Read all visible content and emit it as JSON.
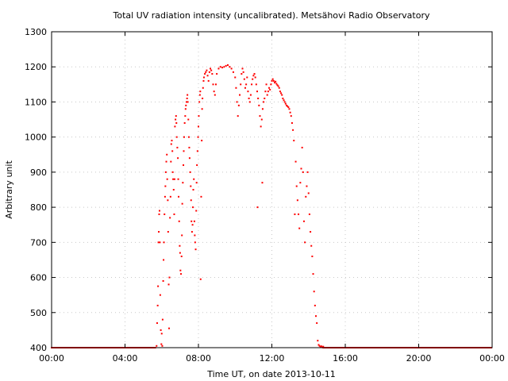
{
  "chart_data": {
    "type": "scatter",
    "title": "Total UV radiation intensity (uncalibrated). Metsähovi Radio Observatory",
    "xlabel": "Time UT, on date 2013-10-11",
    "ylabel": "Arbitrary unit",
    "x_unit": "hours UT",
    "xlim": [
      0,
      24
    ],
    "ylim": [
      400,
      1300
    ],
    "x_ticks": [
      0,
      4,
      8,
      12,
      16,
      20,
      24
    ],
    "x_tick_labels": [
      "00:00",
      "04:00",
      "08:00",
      "12:00",
      "16:00",
      "20:00",
      "00:00"
    ],
    "y_ticks": [
      400,
      500,
      600,
      700,
      800,
      900,
      1000,
      1100,
      1200,
      1300
    ],
    "y_tick_labels": [
      "400",
      "500",
      "600",
      "700",
      "800",
      "900",
      "1000",
      "1100",
      "1200",
      "1300"
    ],
    "grid": true,
    "marker_color": "#ff0000",
    "baseline": {
      "value": 400,
      "x_ranges": [
        [
          0,
          5.65
        ],
        [
          14.8,
          24
        ]
      ]
    },
    "points": [
      [
        5.72,
        405
      ],
      [
        5.75,
        470
      ],
      [
        5.78,
        520
      ],
      [
        5.8,
        575
      ],
      [
        5.82,
        700
      ],
      [
        5.84,
        730
      ],
      [
        5.86,
        780
      ],
      [
        5.88,
        790
      ],
      [
        5.9,
        700
      ],
      [
        5.92,
        550
      ],
      [
        5.95,
        450
      ],
      [
        5.98,
        410
      ],
      [
        6.0,
        440
      ],
      [
        6.03,
        405
      ],
      [
        6.05,
        480
      ],
      [
        6.08,
        590
      ],
      [
        6.1,
        650
      ],
      [
        6.12,
        700
      ],
      [
        6.15,
        780
      ],
      [
        6.18,
        830
      ],
      [
        6.2,
        860
      ],
      [
        6.22,
        900
      ],
      [
        6.25,
        930
      ],
      [
        6.28,
        950
      ],
      [
        6.3,
        880
      ],
      [
        6.33,
        820
      ],
      [
        6.35,
        730
      ],
      [
        6.38,
        580
      ],
      [
        6.4,
        455
      ],
      [
        6.42,
        600
      ],
      [
        6.45,
        770
      ],
      [
        6.48,
        830
      ],
      [
        6.5,
        930
      ],
      [
        6.52,
        980
      ],
      [
        6.55,
        990
      ],
      [
        6.58,
        960
      ],
      [
        6.6,
        900
      ],
      [
        6.62,
        880
      ],
      [
        6.65,
        850
      ],
      [
        6.68,
        780
      ],
      [
        6.7,
        880
      ],
      [
        6.72,
        1030
      ],
      [
        6.75,
        1050
      ],
      [
        6.78,
        1060
      ],
      [
        6.8,
        1040
      ],
      [
        6.82,
        1000
      ],
      [
        6.85,
        970
      ],
      [
        6.88,
        940
      ],
      [
        6.9,
        880
      ],
      [
        6.92,
        830
      ],
      [
        6.95,
        760
      ],
      [
        6.98,
        690
      ],
      [
        7.0,
        670
      ],
      [
        7.02,
        620
      ],
      [
        7.05,
        610
      ],
      [
        7.08,
        660
      ],
      [
        7.1,
        720
      ],
      [
        7.12,
        810
      ],
      [
        7.15,
        870
      ],
      [
        7.18,
        920
      ],
      [
        7.2,
        960
      ],
      [
        7.22,
        1000
      ],
      [
        7.25,
        1040
      ],
      [
        7.28,
        1060
      ],
      [
        7.3,
        1080
      ],
      [
        7.32,
        1090
      ],
      [
        7.35,
        1100
      ],
      [
        7.38,
        1110
      ],
      [
        7.4,
        1120
      ],
      [
        7.42,
        1100
      ],
      [
        7.45,
        1050
      ],
      [
        7.48,
        1000
      ],
      [
        7.5,
        970
      ],
      [
        7.52,
        940
      ],
      [
        7.55,
        900
      ],
      [
        7.58,
        860
      ],
      [
        7.6,
        820
      ],
      [
        7.62,
        760
      ],
      [
        7.65,
        730
      ],
      [
        7.68,
        750
      ],
      [
        7.7,
        800
      ],
      [
        7.72,
        850
      ],
      [
        7.75,
        880
      ],
      [
        7.78,
        760
      ],
      [
        7.8,
        720
      ],
      [
        7.82,
        700
      ],
      [
        7.85,
        680
      ],
      [
        7.88,
        790
      ],
      [
        7.9,
        870
      ],
      [
        7.92,
        920
      ],
      [
        7.95,
        960
      ],
      [
        7.98,
        1000
      ],
      [
        8.0,
        1030
      ],
      [
        8.02,
        1060
      ],
      [
        8.05,
        1100
      ],
      [
        8.08,
        1120
      ],
      [
        8.1,
        1130
      ],
      [
        8.12,
        595
      ],
      [
        8.15,
        830
      ],
      [
        8.18,
        990
      ],
      [
        8.2,
        1080
      ],
      [
        8.22,
        1110
      ],
      [
        8.25,
        1140
      ],
      [
        8.28,
        1160
      ],
      [
        8.3,
        1170
      ],
      [
        8.35,
        1180
      ],
      [
        8.4,
        1185
      ],
      [
        8.45,
        1190
      ],
      [
        8.5,
        1175
      ],
      [
        8.55,
        1160
      ],
      [
        8.6,
        1185
      ],
      [
        8.65,
        1195
      ],
      [
        8.7,
        1190
      ],
      [
        8.75,
        1180
      ],
      [
        8.8,
        1150
      ],
      [
        8.85,
        1130
      ],
      [
        8.9,
        1120
      ],
      [
        8.95,
        1150
      ],
      [
        9.0,
        1180
      ],
      [
        9.1,
        1195
      ],
      [
        9.2,
        1200
      ],
      [
        9.3,
        1198
      ],
      [
        9.4,
        1200
      ],
      [
        9.5,
        1203
      ],
      [
        9.6,
        1205
      ],
      [
        9.7,
        1200
      ],
      [
        9.8,
        1195
      ],
      [
        9.9,
        1185
      ],
      [
        10.0,
        1170
      ],
      [
        10.05,
        1140
      ],
      [
        10.1,
        1100
      ],
      [
        10.15,
        1060
      ],
      [
        10.2,
        1090
      ],
      [
        10.25,
        1120
      ],
      [
        10.3,
        1150
      ],
      [
        10.35,
        1180
      ],
      [
        10.4,
        1195
      ],
      [
        10.45,
        1185
      ],
      [
        10.5,
        1165
      ],
      [
        10.55,
        1140
      ],
      [
        10.6,
        1150
      ],
      [
        10.65,
        1170
      ],
      [
        10.7,
        1130
      ],
      [
        10.75,
        1110
      ],
      [
        10.8,
        1100
      ],
      [
        10.85,
        1120
      ],
      [
        10.9,
        1150
      ],
      [
        10.95,
        1165
      ],
      [
        11.0,
        1175
      ],
      [
        11.05,
        1180
      ],
      [
        11.1,
        1170
      ],
      [
        11.15,
        1150
      ],
      [
        11.2,
        1130
      ],
      [
        11.22,
        800
      ],
      [
        11.25,
        1110
      ],
      [
        11.3,
        1090
      ],
      [
        11.35,
        1060
      ],
      [
        11.4,
        1030
      ],
      [
        11.45,
        1050
      ],
      [
        11.48,
        870
      ],
      [
        11.5,
        1080
      ],
      [
        11.55,
        1100
      ],
      [
        11.6,
        1110
      ],
      [
        11.65,
        1130
      ],
      [
        11.7,
        1150
      ],
      [
        11.75,
        1120
      ],
      [
        11.8,
        1130
      ],
      [
        11.85,
        1140
      ],
      [
        11.9,
        1135
      ],
      [
        11.95,
        1150
      ],
      [
        12.0,
        1160
      ],
      [
        12.05,
        1165
      ],
      [
        12.1,
        1160
      ],
      [
        12.15,
        1155
      ],
      [
        12.2,
        1158
      ],
      [
        12.25,
        1152
      ],
      [
        12.3,
        1148
      ],
      [
        12.35,
        1145
      ],
      [
        12.4,
        1140
      ],
      [
        12.45,
        1130
      ],
      [
        12.5,
        1125
      ],
      [
        12.55,
        1120
      ],
      [
        12.6,
        1110
      ],
      [
        12.65,
        1105
      ],
      [
        12.7,
        1100
      ],
      [
        12.75,
        1095
      ],
      [
        12.8,
        1090
      ],
      [
        12.85,
        1088
      ],
      [
        12.9,
        1085
      ],
      [
        12.95,
        1080
      ],
      [
        13.0,
        1070
      ],
      [
        13.05,
        1060
      ],
      [
        13.1,
        1040
      ],
      [
        13.15,
        1020
      ],
      [
        13.2,
        990
      ],
      [
        13.25,
        780
      ],
      [
        13.3,
        930
      ],
      [
        13.35,
        860
      ],
      [
        13.4,
        820
      ],
      [
        13.45,
        780
      ],
      [
        13.5,
        740
      ],
      [
        13.55,
        870
      ],
      [
        13.6,
        910
      ],
      [
        13.65,
        970
      ],
      [
        13.7,
        900
      ],
      [
        13.75,
        760
      ],
      [
        13.8,
        700
      ],
      [
        13.85,
        830
      ],
      [
        13.9,
        860
      ],
      [
        13.95,
        900
      ],
      [
        14.0,
        840
      ],
      [
        14.05,
        780
      ],
      [
        14.1,
        730
      ],
      [
        14.15,
        690
      ],
      [
        14.2,
        660
      ],
      [
        14.25,
        610
      ],
      [
        14.3,
        560
      ],
      [
        14.35,
        520
      ],
      [
        14.4,
        490
      ],
      [
        14.45,
        470
      ],
      [
        14.5,
        420
      ],
      [
        14.55,
        408
      ],
      [
        14.6,
        405
      ],
      [
        14.65,
        402
      ],
      [
        14.7,
        404
      ],
      [
        14.75,
        401
      ],
      [
        14.8,
        403
      ]
    ]
  }
}
